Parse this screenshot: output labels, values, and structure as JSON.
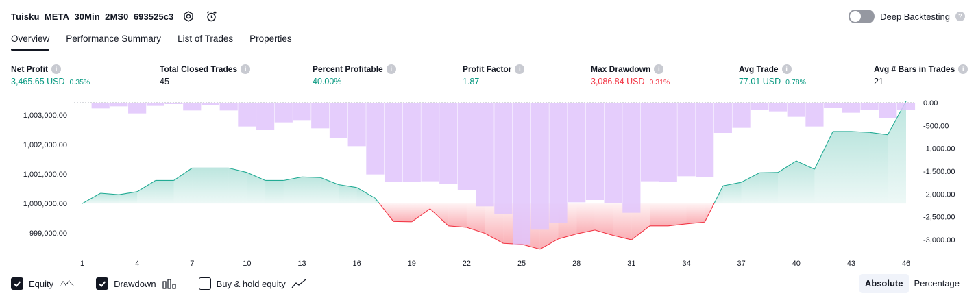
{
  "header": {
    "title": "Tuisku_META_30Min_2MS0_693525c3",
    "settings_icon": "settings-icon",
    "snapshot_icon": "add-alert-icon"
  },
  "deep_backtesting": {
    "label": "Deep Backtesting",
    "enabled": false
  },
  "tabs": [
    {
      "label": "Overview",
      "active": true
    },
    {
      "label": "Performance Summary",
      "active": false
    },
    {
      "label": "List of Trades",
      "active": false
    },
    {
      "label": "Properties",
      "active": false
    }
  ],
  "stats": [
    {
      "label": "Net Profit",
      "value": "3,465.65 USD",
      "pct": "0.35%",
      "tone": "pos"
    },
    {
      "label": "Total Closed Trades",
      "value": "45",
      "pct": "",
      "tone": "neutral"
    },
    {
      "label": "Percent Profitable",
      "value": "40.00%",
      "pct": "",
      "tone": "pos"
    },
    {
      "label": "Profit Factor",
      "value": "1.87",
      "pct": "",
      "tone": "pos"
    },
    {
      "label": "Max Drawdown",
      "value": "3,086.84 USD",
      "pct": "0.31%",
      "tone": "neg"
    },
    {
      "label": "Avg Trade",
      "value": "77.01 USD",
      "pct": "0.78%",
      "tone": "pos"
    },
    {
      "label": "Avg # Bars in Trades",
      "value": "21",
      "pct": "",
      "tone": "neutral"
    }
  ],
  "legend": {
    "equity": {
      "label": "Equity",
      "checked": true
    },
    "drawdown": {
      "label": "Drawdown",
      "checked": true
    },
    "buyhold": {
      "label": "Buy & hold equity",
      "checked": false
    }
  },
  "view_mode": {
    "absolute": "Absolute",
    "percentage": "Percentage",
    "active": "absolute"
  },
  "colors": {
    "equity_pos": "#22ab94",
    "equity_neg": "#f23645",
    "drawdown_bar": "#e1c4fb"
  },
  "chart_data": {
    "type": "area",
    "x_ticks": [
      1,
      4,
      7,
      10,
      13,
      16,
      19,
      22,
      25,
      28,
      31,
      34,
      37,
      40,
      43,
      46
    ],
    "x_range": [
      1,
      46
    ],
    "left_axis": {
      "ticks": [
        "1,003,000.00",
        "1,002,000.00",
        "1,001,000.00",
        "1,000,000.00",
        "999,000.00"
      ],
      "tick_values": [
        1003000,
        1002000,
        1001000,
        1000000,
        999000
      ],
      "baseline": 1000000,
      "range": [
        998540,
        1003460
      ]
    },
    "right_axis": {
      "ticks": [
        "0.00",
        "-500.00",
        "-1,000.00",
        "-1,500.00",
        "-2,000.00",
        "-2,500.00",
        "-3,000.00"
      ],
      "tick_values": [
        0,
        -500,
        -1000,
        -1500,
        -2000,
        -2500,
        -3000
      ],
      "range": [
        -3150,
        30
      ]
    },
    "series": [
      {
        "name": "Equity",
        "values": [
          1000000,
          1000350,
          1000300,
          1000400,
          1000780,
          1000780,
          1001200,
          1001200,
          1001200,
          1001050,
          1000780,
          1000780,
          1000900,
          1000880,
          1000640,
          1000540,
          1000180,
          999390,
          999380,
          999820,
          999240,
          999190,
          998990,
          998650,
          998620,
          998450,
          998800,
          998970,
          999100,
          998920,
          998770,
          999240,
          999240,
          999310,
          999370,
          1000600,
          1000720,
          1001040,
          1001050,
          1001440,
          1001160,
          1002440,
          1002440,
          1002410,
          1002330,
          1003465
        ]
      },
      {
        "name": "Drawdown",
        "values": [
          -10,
          -125,
          -80,
          -235,
          -70,
          -30,
          -170,
          -50,
          -170,
          -520,
          -600,
          -430,
          -380,
          -560,
          -780,
          -950,
          -1570,
          -1730,
          -1740,
          -1720,
          -1780,
          -1920,
          -2270,
          -2430,
          -3100,
          -2780,
          -2640,
          -2180,
          -2130,
          -2200,
          -2410,
          -1720,
          -1730,
          -1610,
          -1620,
          -660,
          -550,
          -160,
          -190,
          -310,
          -520,
          -120,
          -220,
          -150,
          -340,
          -160
        ]
      }
    ]
  }
}
